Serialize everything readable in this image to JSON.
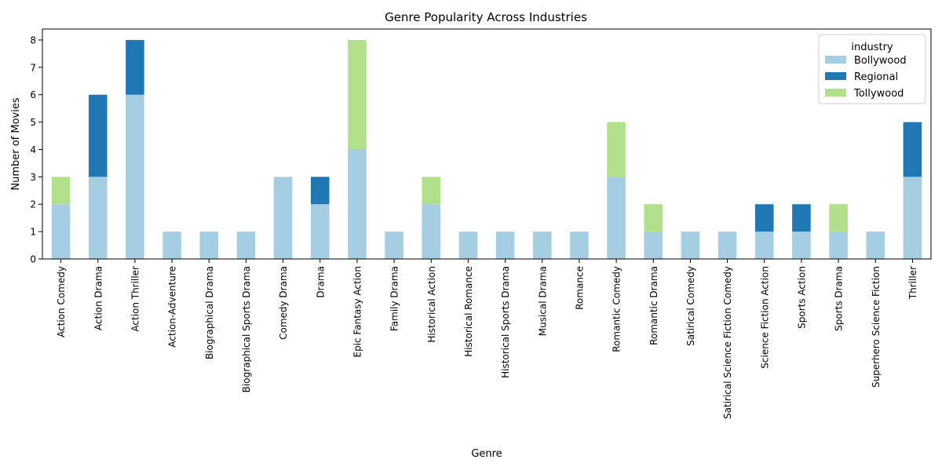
{
  "chart_data": {
    "type": "bar",
    "stacked": true,
    "title": "Genre Popularity Across Industries",
    "xlabel": "Genre",
    "ylabel": "Number of Movies",
    "ylim": [
      0,
      8.4
    ],
    "yticks": [
      0,
      1,
      2,
      3,
      4,
      5,
      6,
      7,
      8
    ],
    "grid": false,
    "legend": {
      "title": "industry",
      "placement": "top-right"
    },
    "categories": [
      "Action Comedy",
      "Action Drama",
      "Action Thriller",
      "Action-Adventure",
      "Biographical Drama",
      "Biographical Sports Drama",
      "Comedy Drama",
      "Drama",
      "Epic Fantasy Action",
      "Family Drama",
      "Historical Action",
      "Historical Romance",
      "Historical Sports Drama",
      "Musical Drama",
      "Romance",
      "Romantic Comedy",
      "Romantic Drama",
      "Satirical Comedy",
      "Satirical Science Fiction Comedy",
      "Science Fiction Action",
      "Sports Action",
      "Sports Drama",
      "Superhero Science Fiction",
      "Thriller"
    ],
    "series": [
      {
        "name": "Bollywood",
        "color": "#a6cee3",
        "values": [
          2,
          3,
          6,
          1,
          1,
          1,
          3,
          2,
          4,
          1,
          2,
          1,
          1,
          1,
          1,
          3,
          1,
          1,
          1,
          1,
          1,
          1,
          1,
          3
        ]
      },
      {
        "name": "Regional",
        "color": "#1f78b4",
        "values": [
          0,
          3,
          2,
          0,
          0,
          0,
          0,
          1,
          0,
          0,
          0,
          0,
          0,
          0,
          0,
          0,
          0,
          0,
          0,
          1,
          1,
          0,
          0,
          2
        ]
      },
      {
        "name": "Tollywood",
        "color": "#b2df8a",
        "values": [
          1,
          0,
          0,
          0,
          0,
          0,
          0,
          0,
          4,
          0,
          1,
          0,
          0,
          0,
          0,
          2,
          1,
          0,
          0,
          0,
          0,
          1,
          0,
          0
        ]
      }
    ]
  }
}
